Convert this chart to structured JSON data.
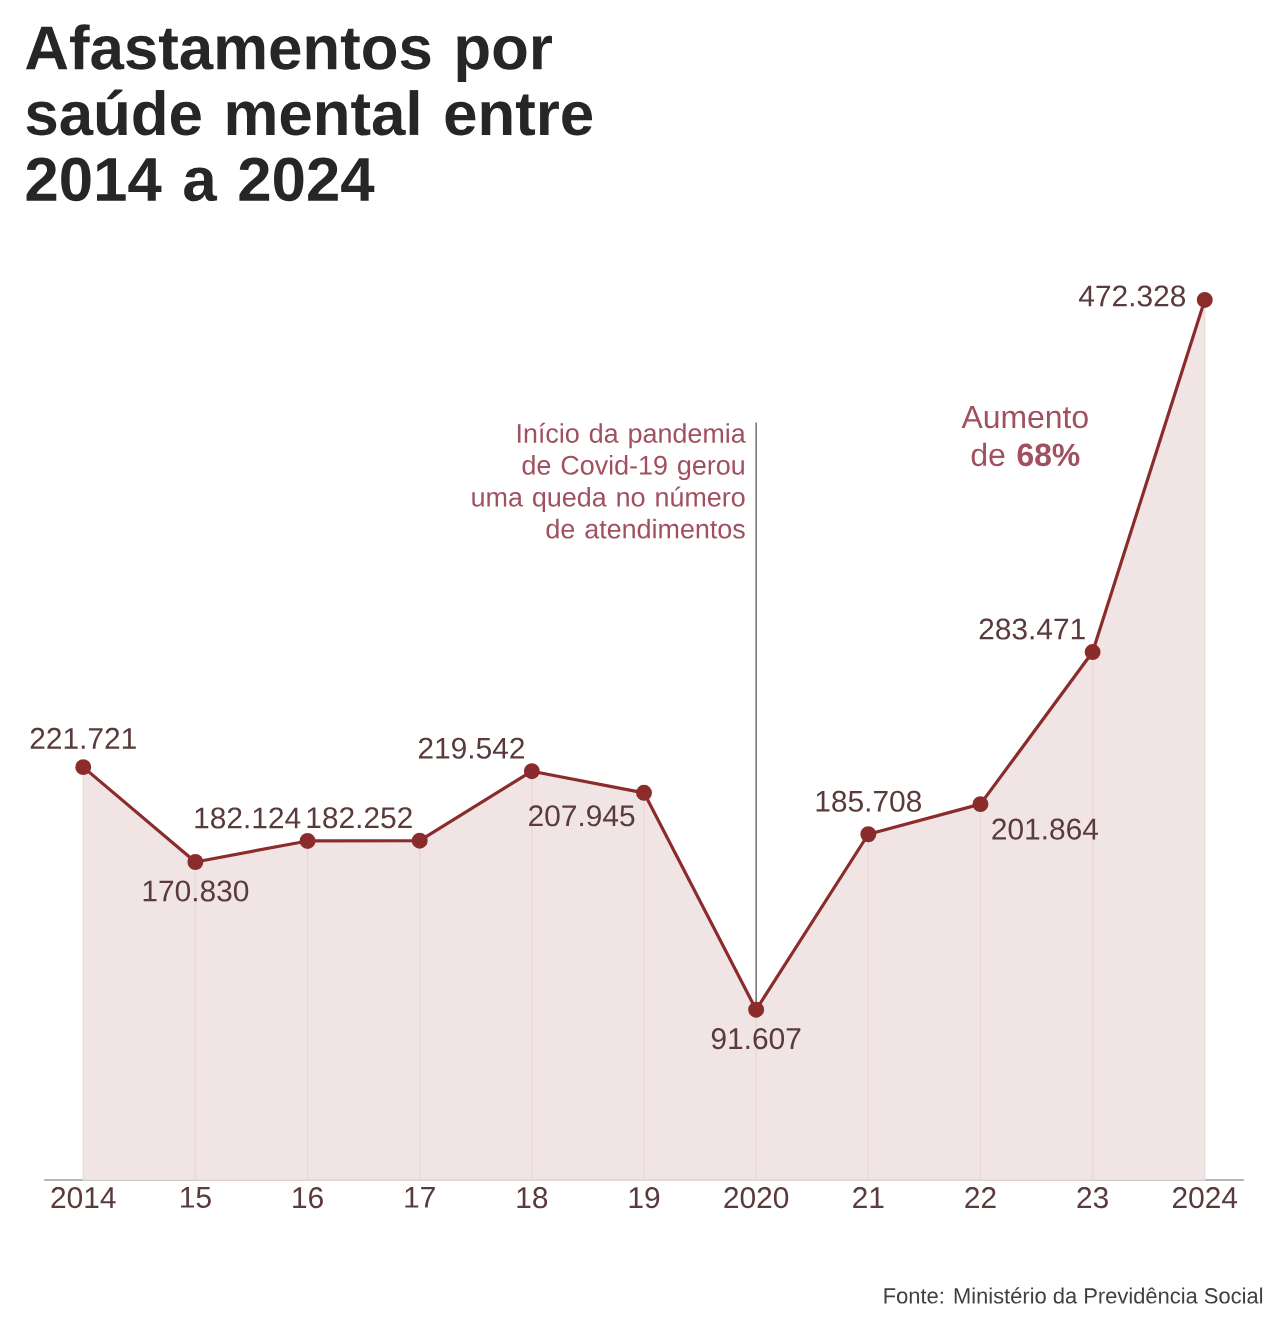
{
  "chart_data": {
    "type": "area",
    "title": "Afastamentos por saúde mental entre 2014 a 2024",
    "categories": [
      "2014",
      "15",
      "16",
      "17",
      "18",
      "19",
      "2020",
      "21",
      "22",
      "23",
      "2024"
    ],
    "values": [
      221721,
      170830,
      182124,
      182252,
      219542,
      207945,
      91607,
      185708,
      201864,
      283471,
      472328
    ],
    "value_labels": [
      "221.721",
      "170.830",
      "182.124",
      "182.252",
      "219.542",
      "207.945",
      "91.607",
      "185.708",
      "201.864",
      "283.471",
      "472.328"
    ],
    "color": "#8b2c2c",
    "marker": "circle",
    "annotations": [
      "Início da pandemia de Covid-19 gerou uma queda no número de atendimentos",
      "Aumento de **68%**",
      "Fonte: Ministério da Previdência Social"
    ]
  }
}
